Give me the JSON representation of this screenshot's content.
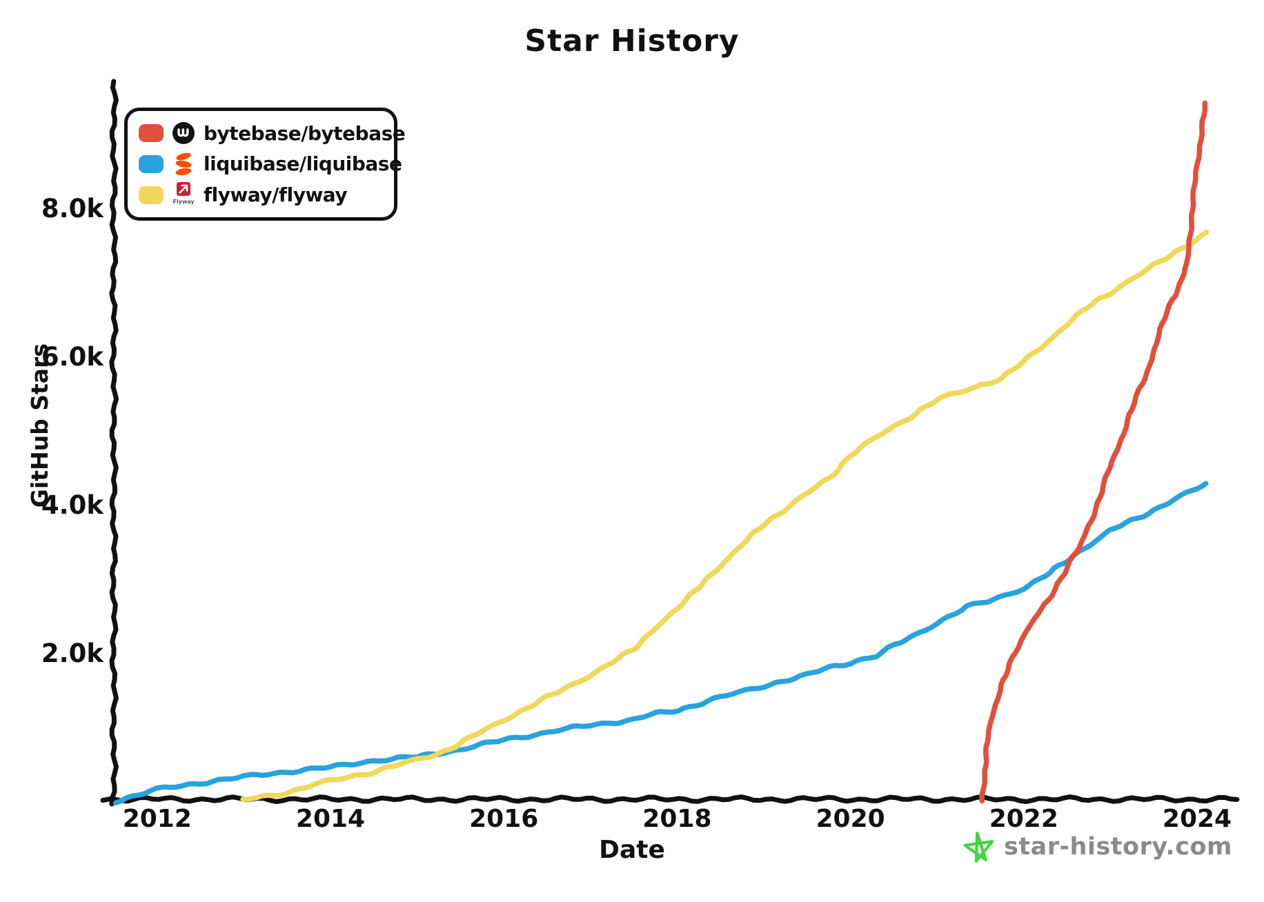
{
  "title": "Star History",
  "axes": {
    "x_label": "Date",
    "y_label": "GitHub Stars"
  },
  "legend": [
    {
      "label": "bytebase/bytebase",
      "color": "#E0503C",
      "icon": "bytebase-logo"
    },
    {
      "label": "liquibase/liquibase",
      "color": "#29A3DD",
      "icon": "liquibase-logo"
    },
    {
      "label": "flyway/flyway",
      "color": "#F0D85A",
      "icon": "flyway-logo",
      "logo_text": "Flyway"
    }
  ],
  "footer": {
    "site": "star-history.com",
    "star_color": "#3ED63E"
  },
  "colors": {
    "axis": "#111111",
    "bytebase_line": "#E0503C",
    "liquibase_line": "#29A3DD",
    "flyway_line": "#F0D85A",
    "liquibase_logo_orange": "#FF4E00",
    "flyway_logo_red": "#CC1F2D",
    "footer_text_gray": "#8A8A8A"
  },
  "chart_data": {
    "type": "line",
    "title": "Star History",
    "xlabel": "Date",
    "ylabel": "GitHub Stars",
    "x_range": [
      2011.5,
      2024.45
    ],
    "y_range": [
      0,
      9700
    ],
    "grid": false,
    "legend_position": "top-left",
    "x_ticks": [
      2012,
      2014,
      2016,
      2018,
      2020,
      2022,
      2024
    ],
    "y_ticks": [
      {
        "v": 2000,
        "label": "2.0k"
      },
      {
        "v": 4000,
        "label": "4.0k"
      },
      {
        "v": 6000,
        "label": "6.0k"
      },
      {
        "v": 8000,
        "label": "8.0k"
      }
    ],
    "series": [
      {
        "name": "liquibase/liquibase",
        "color": "#29A3DD",
        "points": [
          [
            2011.51,
            0
          ],
          [
            2012,
            160
          ],
          [
            2012.5,
            250
          ],
          [
            2013,
            330
          ],
          [
            2013.5,
            400
          ],
          [
            2014,
            460
          ],
          [
            2014.5,
            550
          ],
          [
            2015,
            600
          ],
          [
            2015.25,
            650
          ],
          [
            2015.5,
            700
          ],
          [
            2016,
            830
          ],
          [
            2016.5,
            930
          ],
          [
            2017,
            1030
          ],
          [
            2017.5,
            1100
          ],
          [
            2017.75,
            1180
          ],
          [
            2018,
            1230
          ],
          [
            2018.5,
            1400
          ],
          [
            2019,
            1560
          ],
          [
            2019.5,
            1700
          ],
          [
            2019.75,
            1810
          ],
          [
            2020,
            1870
          ],
          [
            2020.3,
            1960
          ],
          [
            2020.5,
            2100
          ],
          [
            2021,
            2400
          ],
          [
            2021.34,
            2620
          ],
          [
            2021.58,
            2700
          ],
          [
            2022,
            2870
          ],
          [
            2022.3,
            3080
          ],
          [
            2022.64,
            3370
          ],
          [
            2023,
            3650
          ],
          [
            2023.5,
            3930
          ],
          [
            2024,
            4220
          ],
          [
            2024.1,
            4280
          ]
        ]
      },
      {
        "name": "flyway/flyway",
        "color": "#F0D85A",
        "points": [
          [
            2013,
            20
          ],
          [
            2013.5,
            120
          ],
          [
            2014,
            280
          ],
          [
            2014.5,
            400
          ],
          [
            2015,
            560
          ],
          [
            2015.25,
            650
          ],
          [
            2015.5,
            780
          ],
          [
            2016,
            1100
          ],
          [
            2016.5,
            1400
          ],
          [
            2017,
            1700
          ],
          [
            2017.5,
            2050
          ],
          [
            2017.75,
            2340
          ],
          [
            2018,
            2600
          ],
          [
            2018.5,
            3180
          ],
          [
            2019,
            3740
          ],
          [
            2019.5,
            4150
          ],
          [
            2019.75,
            4360
          ],
          [
            2020,
            4670
          ],
          [
            2020.5,
            5060
          ],
          [
            2021,
            5410
          ],
          [
            2021.5,
            5620
          ],
          [
            2021.75,
            5700
          ],
          [
            2022,
            5930
          ],
          [
            2022.5,
            6430
          ],
          [
            2022.77,
            6700
          ],
          [
            2023,
            6860
          ],
          [
            2023.5,
            7230
          ],
          [
            2024,
            7580
          ],
          [
            2024.1,
            7670
          ]
        ]
      },
      {
        "name": "bytebase/bytebase",
        "color": "#E0503C",
        "points": [
          [
            2021.52,
            0
          ],
          [
            2021.55,
            400
          ],
          [
            2021.58,
            800
          ],
          [
            2021.63,
            1140
          ],
          [
            2021.74,
            1550
          ],
          [
            2021.9,
            2020
          ],
          [
            2022.05,
            2340
          ],
          [
            2022.29,
            2720
          ],
          [
            2022.53,
            3230
          ],
          [
            2022.65,
            3420
          ],
          [
            2022.85,
            4020
          ],
          [
            2023.05,
            4670
          ],
          [
            2023.25,
            5290
          ],
          [
            2023.42,
            5790
          ],
          [
            2023.65,
            6600
          ],
          [
            2023.83,
            7060
          ],
          [
            2023.89,
            7270
          ],
          [
            2023.93,
            7800
          ],
          [
            2023.99,
            8500
          ],
          [
            2024.05,
            9000
          ],
          [
            2024.1,
            9430
          ]
        ]
      }
    ]
  }
}
